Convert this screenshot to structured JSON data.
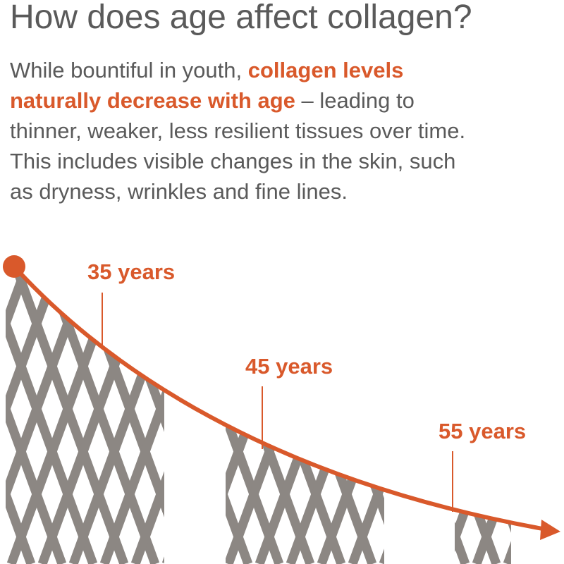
{
  "title": "How does age affect collagen?",
  "paragraph": {
    "lines": [
      [
        "While bountiful in youth, ",
        "collagen levels"
      ],
      [
        "naturally decrease with age",
        " – leading to"
      ],
      [
        "thinner, weaker, less resilient tissues over time."
      ],
      [
        "This includes visible changes in the skin, such"
      ],
      [
        "as dryness, wrinkles and fine lines."
      ]
    ]
  },
  "markers": [
    "35 years",
    "45 years",
    "55 years"
  ]
}
